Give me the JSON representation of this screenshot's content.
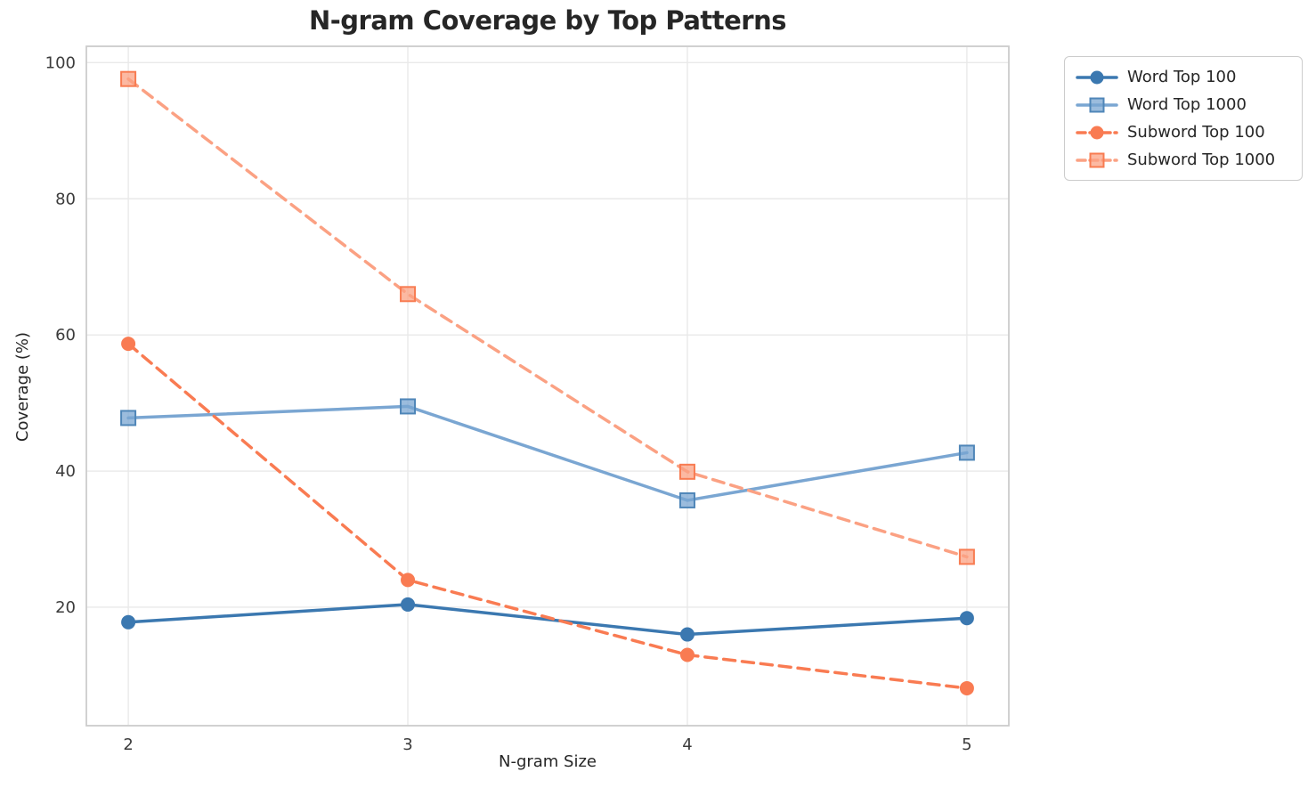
{
  "title": "N-gram Coverage by Top Patterns",
  "chart_data": {
    "type": "line",
    "title": "N-gram Coverage by Top Patterns",
    "xlabel": "N-gram Size",
    "ylabel": "Coverage (%)",
    "x": [
      2,
      3,
      4,
      5
    ],
    "xticks": [
      "2",
      "3",
      "4",
      "5"
    ],
    "yticks": [
      20,
      40,
      60,
      80,
      100
    ],
    "xlim": [
      1.85,
      5.15
    ],
    "ylim": [
      2.6,
      102.4
    ],
    "grid": true,
    "legend_position": "outside-top-right",
    "series": [
      {
        "name": "Word Top 100",
        "values": [
          17.8,
          20.4,
          16.0,
          18.4
        ],
        "color": "#3b78b0",
        "edge": "#3b78b0",
        "marker": "circle",
        "dashed": false
      },
      {
        "name": "Word Top 1000",
        "values": [
          47.8,
          49.5,
          35.7,
          42.7
        ],
        "color": "#7aa6d2",
        "edge": "#4f86b8",
        "marker": "square",
        "dashed": false
      },
      {
        "name": "Subword Top 100",
        "values": [
          58.7,
          24.0,
          13.0,
          8.1
        ],
        "color": "#f97b52",
        "edge": "#f97b52",
        "marker": "circle",
        "dashed": true
      },
      {
        "name": "Subword Top 1000",
        "values": [
          97.6,
          66.0,
          39.9,
          27.4
        ],
        "color": "#fba183",
        "edge": "#f87c52",
        "marker": "square",
        "dashed": true
      }
    ]
  },
  "style": {
    "grid_color": "#e9e9e9",
    "spine_color": "#cccccc",
    "tick_color": "#3b3b3b",
    "line_width": 3.5,
    "dash_pattern": "13 8"
  }
}
